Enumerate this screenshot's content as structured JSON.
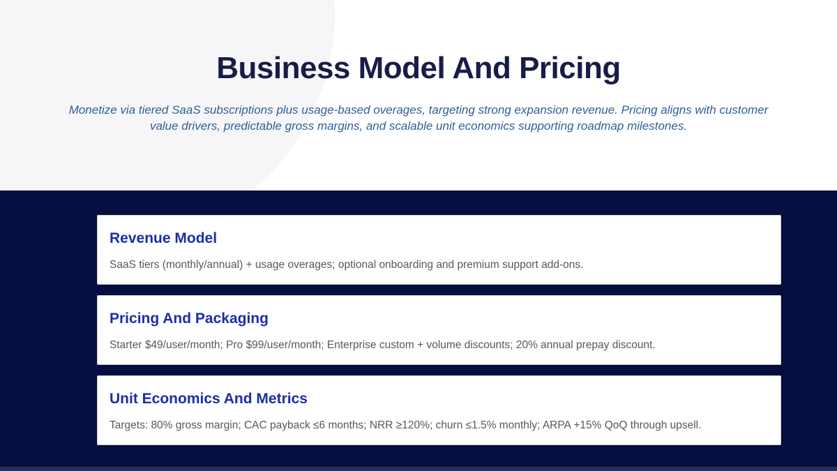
{
  "page": {
    "title": "Business Model And Pricing",
    "subtitle": "Monetize via tiered SaaS subscriptions plus usage-based overages, targeting strong expansion revenue. Pricing aligns with customer value drivers, predictable gross margins, and scalable unit economics supporting roadmap milestones."
  },
  "cards": [
    {
      "title": "Revenue Model",
      "body": "SaaS tiers (monthly/annual) + usage overages; optional onboarding and premium support add-ons."
    },
    {
      "title": "Pricing And Packaging",
      "body": "Starter $49/user/month; Pro $99/user/month; Enterprise custom + volume discounts; 20% annual prepay discount."
    },
    {
      "title": "Unit Economics And Metrics",
      "body": "Targets: 80% gross margin; CAC payback ≤6 months; NRR ≥120%; churn ≤1.5% monthly; ARPA +15% QoQ through upsell."
    }
  ],
  "colors": {
    "navy_background": "#050e3e",
    "title_text": "#181d47",
    "subtitle_text": "#2e5f96",
    "card_heading_accent": "#1c2ea6",
    "card_body_text": "#54585f",
    "background_circle": "#f6f6f8",
    "bottom_strip": "#272e57"
  }
}
